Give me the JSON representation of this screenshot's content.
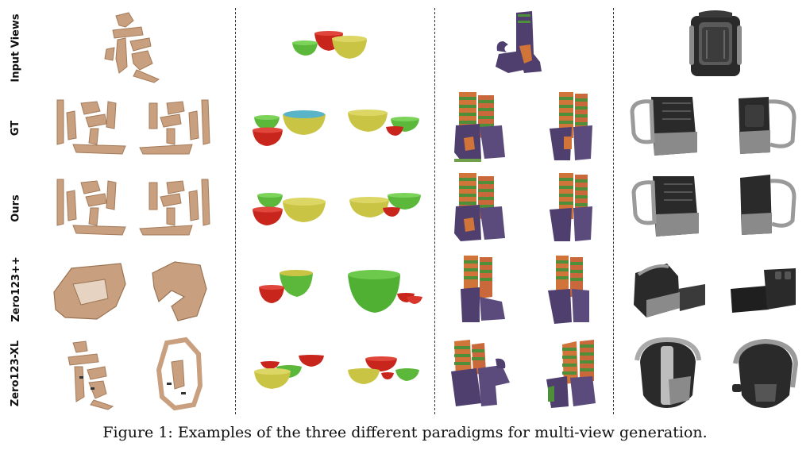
{
  "row_labels": [
    "Input Views",
    "GT",
    "Ours",
    "Zero123++",
    "Zero123-XL"
  ],
  "caption": "Figure 1: Examples of the three different paradigms for multi-view generation.",
  "objects": [
    "calligraphy-sculpture",
    "bowls",
    "boots",
    "backpack"
  ],
  "colors": {
    "tan": "#c9a07f",
    "bowl_red": "#c8261d",
    "bowl_green": "#5cb83a",
    "bowl_yellow": "#c9c444",
    "bowl_cyan": "#5ab4c8",
    "boot_purple": "#4e3f6e",
    "stripe_green": "#4f8f3a",
    "stripe_orange": "#d0743a",
    "pack_dark": "#2a2a2a",
    "pack_gray": "#8a8a8a"
  }
}
